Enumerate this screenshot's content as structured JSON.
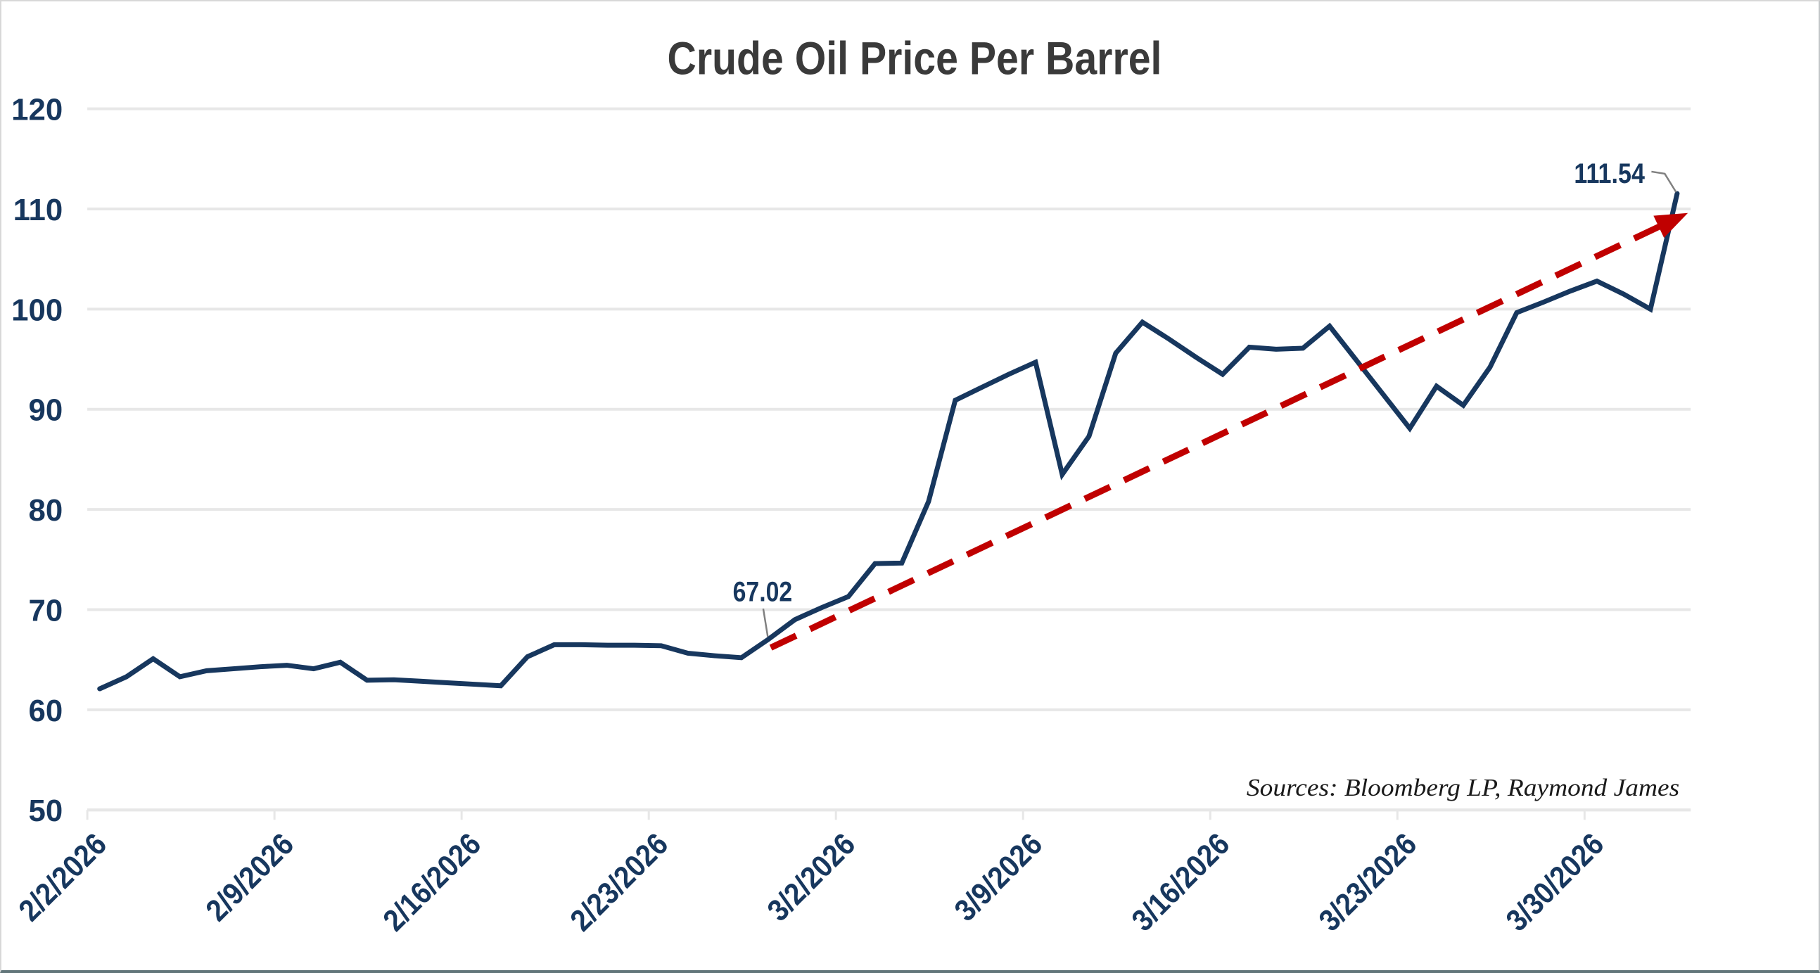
{
  "title": "Crude Oil Price Per Barrel",
  "source_note": "Sources: Bloomberg LP, Raymond James",
  "colors": {
    "line": "#17375E",
    "trendline": "#C00000",
    "axis_labels": "#17375E",
    "title": "#3A3A3A",
    "source": "#1A1A1A",
    "gridline": "#E7E7E7",
    "leader": "#808080",
    "background": "#FFFFFF"
  },
  "chart_data": {
    "type": "line",
    "title": "Crude Oil Price Per Barrel",
    "xlabel": "",
    "ylabel": "",
    "ylim": [
      50,
      120
    ],
    "y_ticks": [
      50,
      60,
      70,
      80,
      90,
      100,
      110,
      120
    ],
    "grid": "horizontal",
    "legend": "none",
    "points_per_tick": 7,
    "x_tick_labels": [
      "2/2/2026",
      "2/9/2026",
      "2/16/2026",
      "2/23/2026",
      "3/2/2026",
      "3/9/2026",
      "3/16/2026",
      "3/23/2026",
      "3/30/2026"
    ],
    "series": [
      {
        "name": "Crude oil price per barrel (USD)",
        "dates": [
          "2/2/2026",
          "2/3/2026",
          "2/4/2026",
          "2/5/2026",
          "2/6/2026",
          "2/7/2026",
          "2/8/2026",
          "2/9/2026",
          "2/10/2026",
          "2/11/2026",
          "2/12/2026",
          "2/13/2026",
          "2/14/2026",
          "2/15/2026",
          "2/16/2026",
          "2/17/2026",
          "2/18/2026",
          "2/19/2026",
          "2/20/2026",
          "2/21/2026",
          "2/22/2026",
          "2/23/2026",
          "2/24/2026",
          "2/25/2026",
          "2/26/2026",
          "2/27/2026",
          "2/28/2026",
          "3/1/2026",
          "3/2/2026",
          "3/3/2026",
          "3/4/2026",
          "3/5/2026",
          "3/6/2026",
          "3/7/2026",
          "3/8/2026",
          "3/9/2026",
          "3/10/2026",
          "3/11/2026",
          "3/12/2026",
          "3/13/2026",
          "3/14/2026",
          "3/15/2026",
          "3/16/2026",
          "3/17/2026",
          "3/18/2026",
          "3/19/2026",
          "3/20/2026",
          "3/21/2026",
          "3/22/2026",
          "3/23/2026",
          "3/24/2026",
          "3/25/2026",
          "3/26/2026",
          "3/27/2026",
          "3/28/2026",
          "3/29/2026",
          "3/30/2026",
          "3/31/2026",
          "4/1/2026",
          "4/2/2026"
        ],
        "values": [
          62.1,
          63.3,
          65.1,
          63.3,
          63.9,
          64.1,
          64.3,
          64.45,
          64.1,
          64.75,
          62.95,
          63.0,
          62.85,
          62.7,
          62.55,
          62.4,
          65.3,
          66.5,
          66.5,
          66.45,
          66.45,
          66.4,
          65.65,
          65.4,
          65.2,
          67.02,
          69.0,
          70.2,
          71.3,
          74.6,
          74.65,
          80.8,
          90.9,
          92.2,
          93.5,
          94.7,
          83.5,
          87.3,
          95.6,
          98.7,
          97.0,
          95.2,
          93.5,
          96.2,
          96.0,
          96.1,
          98.3,
          94.9,
          91.5,
          88.1,
          92.3,
          90.4,
          94.2,
          99.65,
          100.7,
          101.8,
          102.8,
          101.5,
          100.0,
          111.54
        ]
      }
    ],
    "annotations": [
      {
        "label": "67.02",
        "date": "2/27/2026",
        "value": 67.02,
        "point_index": 25
      },
      {
        "label": "111.54",
        "date": "4/2/2026",
        "value": 111.54,
        "point_index": 59
      }
    ],
    "trendline": {
      "style": "dashed",
      "arrow_end": true,
      "from": {
        "point_index": 25.1,
        "value": 66.2
      },
      "to": {
        "point_index": 59.4,
        "value": 109.6
      }
    }
  }
}
